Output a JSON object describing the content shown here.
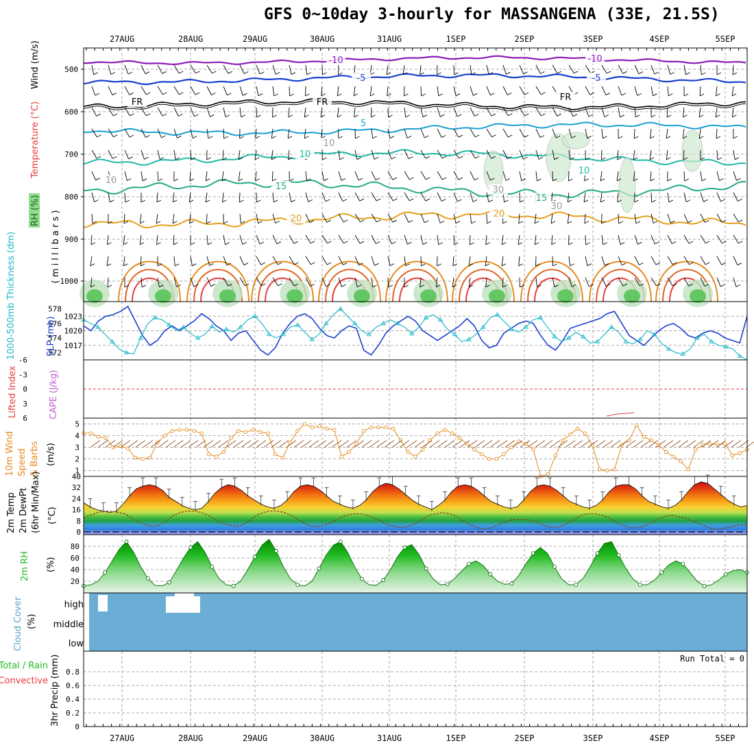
{
  "title": "GFS 0~10day 3-hourly for MASSANGENA (33E, 21.5S)",
  "dates": [
    "27AUG",
    "28AUG",
    "29AUG",
    "30AUG",
    "31AUG",
    "1SEP",
    "2SEP",
    "3SEP",
    "4SEP",
    "5SEP"
  ],
  "colors": {
    "grid": "#aaaaaa",
    "temp_red": "#e83a3a",
    "orange": "#e48a1c",
    "cyan": "#20b8c8",
    "blue": "#1a3fcf",
    "purple": "#8a1ab8",
    "green": "#22bb22",
    "cloud": "#6aaed6",
    "dewpt": "#8b4513"
  },
  "panels": {
    "upper": {
      "ylabel_parts": [
        "RH (%)",
        "Temperature (°C)",
        "Wind (m/s)"
      ],
      "ylabel_unit": "( m i l l i b a r s )",
      "ticks": [
        "500",
        "600",
        "700",
        "800",
        "900",
        "1000"
      ],
      "contour_labels": [
        {
          "text": "-10",
          "color": "#8a1ab8"
        },
        {
          "text": "-10",
          "color": "#8a1ab8"
        },
        {
          "text": "-5",
          "color": "#1a3fcf"
        },
        {
          "text": "-5",
          "color": "#1a3fcf"
        },
        {
          "text": "FR",
          "color": "#000000"
        },
        {
          "text": "FR",
          "color": "#000000"
        },
        {
          "text": "FR",
          "color": "#000000"
        },
        {
          "text": "5",
          "color": "#1a9fd0"
        },
        {
          "text": "10",
          "color": "#20b8a8"
        },
        {
          "text": "10",
          "color": "#20b8a8"
        },
        {
          "text": "15",
          "color": "#22aa88"
        },
        {
          "text": "15",
          "color": "#22aa88"
        },
        {
          "text": "20",
          "color": "#e4a01c"
        },
        {
          "text": "20",
          "color": "#e4a01c"
        },
        {
          "text": "10",
          "color": "#999999"
        },
        {
          "text": "10",
          "color": "#999999"
        },
        {
          "text": "30",
          "color": "#999999"
        },
        {
          "text": "30",
          "color": "#999999"
        }
      ]
    },
    "slp": {
      "ylabel_left": "1000-500mb Thickness (dm)",
      "ylabel_right": "SLP (mb)",
      "ticks_left": [
        "578",
        "576",
        "574",
        "572"
      ],
      "ticks_right": [
        "1023",
        "1020",
        "1017"
      ]
    },
    "cape": {
      "ylabel_left": "Lifted Index",
      "ylabel_right": "CAPE (J/kg)",
      "ticks": [
        "-6",
        "-3",
        "0",
        "3",
        "6"
      ]
    },
    "wind10": {
      "ylabel": [
        "10m Wind",
        "Speed",
        "& Barbs"
      ],
      "unit": "(m/s)",
      "ticks": [
        "5",
        "4",
        "3",
        "2",
        "1"
      ]
    },
    "temp2m": {
      "ylabel": [
        "2m Temp",
        "2m DewPt",
        "(6hr Min/Max)"
      ],
      "unit": "(°C)",
      "ticks": [
        "40",
        "32",
        "24",
        "16",
        "8",
        "0"
      ]
    },
    "rh2m": {
      "ylabel": "2m RH",
      "unit": "(%)",
      "ticks": [
        "80",
        "60",
        "40",
        "20"
      ]
    },
    "cloud": {
      "ylabel": "Cloud Cover",
      "unit": "(%)",
      "ticks": [
        "high",
        "middle",
        "low"
      ]
    },
    "precip": {
      "ylabel_a": "Total / Rain",
      "ylabel_b": "Convective",
      "ylabel_c": "3hr Precip (mm)",
      "ticks": [
        "0.8",
        "0.6",
        "0.4",
        "0.2",
        "0"
      ],
      "run_total": "Run Total = 0"
    }
  },
  "chart_data": [
    {
      "type": "line",
      "panel": "slp",
      "name": "",
      "ylim": [
        1014,
        1026
      ],
      "values": [
        1021,
        1020,
        1022,
        1023,
        1023.3,
        1024,
        1025,
        1022,
        1019,
        1017,
        1018,
        1020,
        1021,
        1020,
        1021,
        1022,
        1023.5,
        1022.5,
        1021,
        1020,
        1018,
        1019.5,
        1020,
        1018,
        1016,
        1015,
        1016.5,
        1019.5,
        1021.5,
        1023,
        1023.5,
        1022.5,
        1020.5,
        1019,
        1018.5,
        1020,
        1021,
        1020.5,
        1016,
        1015,
        1017,
        1019.5,
        1021,
        1022,
        1023,
        1022,
        1020,
        1019,
        1018,
        1019,
        1020,
        1021,
        1022.5,
        1021,
        1018,
        1016.5,
        1017,
        1019.5,
        1020.5,
        1021.5,
        1022,
        1021.5,
        1019,
        1017,
        1016,
        1018,
        1020.5,
        1021,
        1021.5,
        1022,
        1022.5,
        1023.5,
        1024,
        1021.5,
        1019,
        1018,
        1017,
        1018.5,
        1020,
        1021,
        1021.5,
        1020.5,
        1019,
        1018.5,
        1019.5,
        1020,
        1019.5,
        1018.5,
        1018,
        1017.5,
        1023
      ]
    },
    {
      "type": "line",
      "panel": "thickness",
      "name": "",
      "ylim": [
        571,
        579
      ],
      "values": [
        576.5,
        576,
        575.5,
        574.5,
        573.5,
        572.5,
        572,
        571.8,
        574,
        576,
        576.8,
        576.5,
        575.8,
        575,
        575.5,
        574.6,
        574,
        574.5,
        575.6,
        574.8,
        575.2,
        574.8,
        575.5,
        576.5,
        577,
        576,
        574.5,
        574,
        574.5,
        575.5,
        575.8,
        574.8,
        573.8,
        574.5,
        576,
        577.2,
        578,
        577,
        576,
        575,
        574.5,
        575.5,
        576,
        576.5,
        576,
        575.5,
        574.6,
        575.5,
        576.8,
        577.2,
        576.5,
        575.2,
        574.5,
        573.5,
        573.8,
        574.5,
        575.5,
        576.8,
        577.2,
        576.2,
        575.2,
        574.8,
        575.5,
        576.5,
        576.8,
        575.5,
        574.2,
        573.5,
        574,
        574.8,
        574.2,
        573.3,
        573.5,
        574.5,
        575.5,
        574.8,
        573.5,
        573.2,
        573.8,
        575,
        574.5,
        573.3,
        572.5,
        572,
        571.8,
        572.5,
        574,
        574.5,
        573.5,
        573,
        572.8,
        572.5,
        571.5,
        571
      ]
    },
    {
      "type": "line",
      "panel": "wind10",
      "name": "",
      "ylim": [
        0.5,
        5.5
      ],
      "values": [
        4.2,
        4.2,
        3.9,
        3.8,
        3,
        3.1,
        2.9,
        2.1,
        2,
        2.1,
        3.4,
        4,
        4.4,
        4.5,
        4.5,
        4.4,
        4.2,
        2.4,
        2.2,
        2.6,
        3.8,
        4.4,
        4.3,
        4.5,
        4.3,
        4.2,
        2.4,
        2.1,
        3.4,
        4.4,
        5,
        4.7,
        4.8,
        4.6,
        4.5,
        2.2,
        2.6,
        3.3,
        4.4,
        4.7,
        4.7,
        4.7,
        4.6,
        3.6,
        2.6,
        2.2,
        2.8,
        3.6,
        4.2,
        4.5,
        4.2,
        3.8,
        3.3,
        2.8,
        2.4,
        2,
        2,
        2.4,
        3,
        3.5,
        3.3,
        2.8,
        0.5,
        0.7,
        2.3,
        3.6,
        4.1,
        4.6,
        4.2,
        3.2,
        1.1,
        1,
        1.1,
        3.2,
        3.6,
        4.9,
        3.9,
        3.6,
        3.2,
        2.6,
        2.2,
        1.8,
        1.1,
        2.8,
        3.2,
        3.3,
        3.2,
        3.3,
        2.3,
        2.5,
        2.8
      ]
    },
    {
      "type": "area",
      "panel": "temp2m",
      "name": "",
      "ylim": [
        -2,
        40
      ],
      "values": [
        21,
        18,
        16,
        15,
        14,
        15,
        20,
        26,
        31,
        33,
        34,
        33,
        30,
        25,
        22,
        19,
        17,
        16,
        17,
        22,
        28,
        32,
        34,
        33,
        30,
        26,
        23,
        20,
        18,
        17,
        19,
        23,
        29,
        33,
        34,
        33,
        30,
        26,
        22,
        20,
        18,
        17,
        19,
        23,
        29,
        33,
        35,
        34,
        31,
        27,
        23,
        20,
        18,
        16,
        19,
        23,
        29,
        33,
        34,
        33,
        30,
        26,
        22,
        20,
        18,
        17,
        18,
        23,
        29,
        33,
        34,
        33,
        30,
        26,
        22,
        20,
        18,
        17,
        19,
        23,
        29,
        33,
        34,
        34,
        31,
        26,
        22,
        20,
        18,
        17,
        19,
        23,
        29,
        34,
        36,
        35,
        31,
        27,
        23,
        20,
        18,
        19
      ]
    },
    {
      "type": "line",
      "panel": "dewpt",
      "name": "",
      "ylim": [
        -2,
        40
      ],
      "values": [
        10,
        12,
        14,
        15,
        15,
        14,
        13,
        10,
        7,
        5,
        4,
        5,
        8,
        12,
        14,
        15,
        15,
        14,
        12,
        9,
        6,
        5,
        4,
        5,
        8,
        12,
        14,
        15,
        15,
        14,
        12,
        9,
        6,
        4,
        4,
        5,
        7,
        10,
        12,
        13,
        13,
        12,
        10,
        8,
        5,
        4,
        3,
        4,
        6,
        9,
        12,
        13,
        14,
        13,
        11,
        8,
        5,
        3,
        2,
        3,
        5,
        7,
        9,
        9,
        9,
        8,
        6,
        4,
        3,
        4,
        6,
        9,
        12,
        13,
        13,
        12,
        10,
        7,
        5,
        3,
        3,
        4,
        6,
        9,
        11,
        12,
        11,
        10,
        8,
        6,
        4,
        2,
        2,
        3,
        4,
        5,
        5
      ]
    },
    {
      "type": "area",
      "panel": "rh2m",
      "name": "",
      "ylim": [
        0,
        100
      ],
      "values": [
        12,
        14,
        20,
        35,
        55,
        75,
        88,
        70,
        45,
        25,
        13,
        12,
        18,
        38,
        60,
        78,
        88,
        70,
        45,
        24,
        14,
        12,
        20,
        40,
        62,
        82,
        92,
        72,
        45,
        24,
        14,
        12,
        20,
        42,
        65,
        82,
        88,
        70,
        45,
        24,
        14,
        13,
        22,
        40,
        62,
        78,
        83,
        66,
        42,
        24,
        14,
        15,
        25,
        38,
        50,
        55,
        47,
        32,
        20,
        15,
        16,
        30,
        50,
        68,
        78,
        68,
        45,
        24,
        14,
        14,
        25,
        45,
        68,
        85,
        88,
        65,
        42,
        24,
        14,
        14,
        22,
        35,
        48,
        55,
        50,
        35,
        20,
        12,
        14,
        22,
        32,
        38,
        40,
        35
      ]
    },
    {
      "type": "bar",
      "panel": "precip",
      "name": "",
      "ylim": [
        0,
        1
      ],
      "values": [
        0,
        0,
        0,
        0,
        0,
        0,
        0,
        0,
        0,
        0
      ]
    }
  ]
}
